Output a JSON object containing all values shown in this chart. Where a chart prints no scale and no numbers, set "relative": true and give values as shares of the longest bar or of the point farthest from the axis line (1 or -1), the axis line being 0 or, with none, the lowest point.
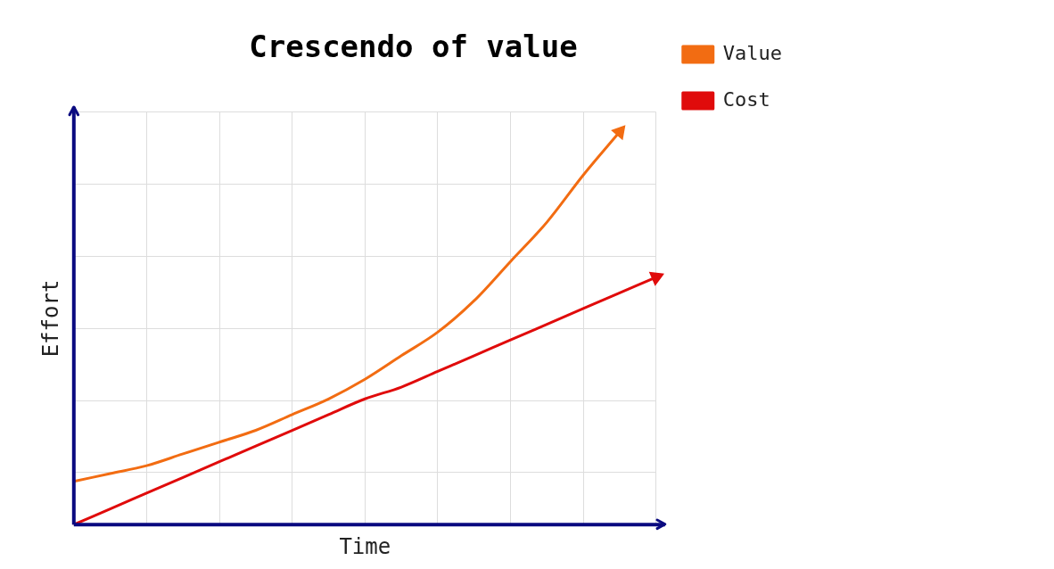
{
  "chart_data": {
    "type": "line",
    "title": "Crescendo of value",
    "xlabel": "Time",
    "ylabel": "Effort",
    "relative": true,
    "grid": true,
    "legend": "top right",
    "marker": "none",
    "line_style": "solid",
    "categories": [
      null,
      null,
      null,
      null,
      null,
      null,
      null,
      null,
      null,
      null,
      null,
      null,
      null,
      null,
      null,
      null,
      null
    ],
    "series": [
      {
        "name": "Value",
        "color": "#f26c12",
        "values": [
          0.11,
          0.13,
          0.15,
          0.18,
          0.21,
          0.24,
          0.28,
          0.32,
          0.37,
          0.43,
          0.49,
          0.57,
          0.67,
          0.77,
          0.89,
          1,
          null
        ]
      },
      {
        "name": "Cost",
        "color": "#e00b0b",
        "values": [
          0,
          0.04,
          0.08,
          0.12,
          0.16,
          0.2,
          0.24,
          0.28,
          0.32,
          0.35,
          0.39,
          0.43,
          0.47,
          0.51,
          0.55,
          0.59,
          0.63
        ]
      }
    ]
  }
}
